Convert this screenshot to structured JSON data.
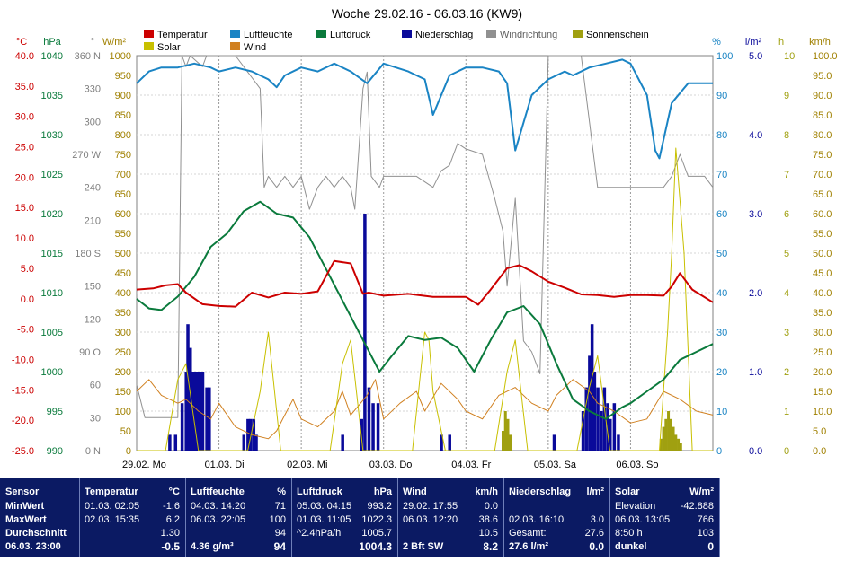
{
  "title": "Woche 29.02.16 - 06.03.16 (KW9)",
  "legend": [
    {
      "label": "Temperatur",
      "color": "#cc0000"
    },
    {
      "label": "Luftfeuchte",
      "color": "#1a84c4"
    },
    {
      "label": "Luftdruck",
      "color": "#0a7a3c"
    },
    {
      "label": "Niederschlag",
      "color": "#0a0a9a"
    },
    {
      "label": "Windrichtung",
      "color": "#909090"
    },
    {
      "label": "Sonnenschein",
      "color": "#a0a010"
    },
    {
      "label": "Solar",
      "color": "#c8c000"
    },
    {
      "label": "Wind",
      "color": "#d08020"
    }
  ],
  "axes": {
    "temp": {
      "unit": "°C",
      "color": "#cc0000",
      "ticks": [
        "40.0",
        "35.0",
        "30.0",
        "25.0",
        "20.0",
        "15.0",
        "10.0",
        "5.0",
        "0.0",
        "-5.0",
        "-10.0",
        "-15.0",
        "-20.0",
        "-25.0"
      ]
    },
    "press": {
      "unit": "hPa",
      "color": "#0a7a3c",
      "ticks": [
        "1040",
        "1035",
        "1030",
        "1025",
        "1020",
        "1015",
        "1010",
        "1005",
        "1000",
        "995",
        "990"
      ]
    },
    "dir": {
      "unit": "°",
      "color": "#808080",
      "ticks": [
        "360 N",
        "330",
        "300",
        "270 W",
        "240",
        "210",
        "180 S",
        "150",
        "120",
        "90 O",
        "60",
        "30",
        "0 N"
      ]
    },
    "solar": {
      "unit": "W/m²",
      "color": "#a08000",
      "ticks": [
        "1000",
        "950",
        "900",
        "850",
        "800",
        "750",
        "700",
        "650",
        "600",
        "550",
        "500",
        "450",
        "400",
        "350",
        "300",
        "250",
        "200",
        "150",
        "100",
        "50",
        "0"
      ]
    },
    "hum": {
      "unit": "%",
      "color": "#1a84c4",
      "ticks": [
        "100",
        "90",
        "80",
        "70",
        "60",
        "50",
        "40",
        "30",
        "20",
        "10",
        "0"
      ]
    },
    "rain": {
      "unit": "l/m²",
      "color": "#0a0a9a",
      "ticks": [
        "5.0",
        "4.0",
        "3.0",
        "2.0",
        "1.0",
        "0.0"
      ]
    },
    "sun": {
      "unit": "h",
      "color": "#a0a010",
      "ticks": [
        "10",
        "9",
        "8",
        "7",
        "6",
        "5",
        "4",
        "3",
        "2",
        "1",
        "0"
      ]
    },
    "wind": {
      "unit": "km/h",
      "color": "#a08000",
      "ticks": [
        "100.0",
        "95.0",
        "90.0",
        "85.0",
        "80.0",
        "75.0",
        "70.0",
        "65.0",
        "60.0",
        "55.0",
        "50.0",
        "45.0",
        "40.0",
        "35.0",
        "30.0",
        "25.0",
        "20.0",
        "15.0",
        "10.0",
        "5.0",
        "0.0"
      ]
    }
  },
  "chart_data": {
    "type": "line",
    "title": "Woche 29.02.16 - 06.03.16 (KW9)",
    "x_days": [
      "29.02.  Mo",
      "01.03.  Di",
      "02.03.  Mi",
      "03.03.  Do",
      "04.03.  Fr",
      "05.03.  Sa",
      "06.03.  So"
    ],
    "x_unit": "days since 29.02. 00:00",
    "series": [
      {
        "name": "Temperatur",
        "axis": "temp",
        "color": "#cc0000",
        "x": [
          0,
          0.2,
          0.35,
          0.5,
          0.6,
          0.8,
          1.0,
          1.2,
          1.4,
          1.6,
          1.8,
          2.0,
          2.2,
          2.4,
          2.6,
          2.75,
          2.82,
          3.0,
          3.3,
          3.6,
          3.8,
          4.0,
          4.15,
          4.3,
          4.5,
          4.65,
          4.8,
          5.0,
          5.2,
          5.4,
          5.6,
          5.8,
          6.0,
          6.2,
          6.4,
          6.5,
          6.6,
          6.75,
          7.0
        ],
        "y": [
          1.5,
          1.7,
          2.2,
          2.4,
          1.0,
          -0.9,
          -1.2,
          -1.3,
          1.0,
          0.2,
          1.0,
          0.8,
          1.2,
          6.2,
          5.8,
          0.8,
          1.0,
          0.5,
          0.8,
          0.3,
          0.3,
          0.3,
          -1.0,
          1.5,
          5.0,
          5.5,
          4.5,
          2.8,
          1.8,
          0.7,
          0.6,
          0.3,
          0.6,
          0.6,
          0.5,
          2.0,
          4.2,
          1.5,
          -0.6
        ]
      },
      {
        "name": "Luftfeuchte",
        "axis": "hum",
        "color": "#1a84c4",
        "x": [
          0,
          0.15,
          0.3,
          0.5,
          0.7,
          0.9,
          1.0,
          1.2,
          1.4,
          1.6,
          1.7,
          1.8,
          2.0,
          2.2,
          2.4,
          2.6,
          2.8,
          3.0,
          3.15,
          3.3,
          3.5,
          3.6,
          3.8,
          4.0,
          4.2,
          4.4,
          4.5,
          4.6,
          4.8,
          5.0,
          5.2,
          5.3,
          5.5,
          5.7,
          5.9,
          6.0,
          6.2,
          6.3,
          6.35,
          6.5,
          6.7,
          7.0
        ],
        "y": [
          93,
          96,
          97,
          97,
          98,
          97,
          96,
          97,
          96,
          94,
          92,
          95,
          97,
          96,
          98,
          96,
          93,
          98,
          97,
          96,
          94,
          85,
          95,
          97,
          97,
          96,
          93,
          76,
          90,
          94,
          96,
          95,
          97,
          98,
          99,
          98,
          90,
          76,
          74,
          88,
          93,
          93
        ]
      },
      {
        "name": "Luftdruck",
        "axis": "press",
        "color": "#0a7a3c",
        "x": [
          0,
          0.15,
          0.3,
          0.5,
          0.7,
          0.9,
          1.1,
          1.3,
          1.5,
          1.7,
          1.9,
          2.1,
          2.3,
          2.6,
          2.8,
          2.95,
          3.1,
          3.3,
          3.5,
          3.7,
          3.9,
          4.1,
          4.3,
          4.5,
          4.7,
          4.9,
          5.1,
          5.3,
          5.5,
          5.7,
          5.9,
          6.0,
          6.2,
          6.4,
          6.6,
          6.8,
          7.0
        ],
        "y": [
          1009.2,
          1008.0,
          1007.8,
          1009.5,
          1012.0,
          1015.8,
          1017.5,
          1020.3,
          1021.5,
          1020.0,
          1019.5,
          1017.0,
          1013.0,
          1007.0,
          1003.0,
          1000.0,
          1002.0,
          1004.5,
          1004.0,
          1004.3,
          1003.0,
          1000.0,
          1004.0,
          1007.5,
          1008.3,
          1006.0,
          1001.0,
          996.5,
          995.0,
          994.0,
          995.5,
          996.0,
          997.5,
          999.0,
          1001.5,
          1002.5,
          1003.5
        ]
      },
      {
        "name": "Windrichtung",
        "axis": "dir",
        "color": "#909090",
        "x": [
          0,
          0.05,
          0.1,
          0.3,
          0.5,
          0.55,
          0.6,
          0.65,
          0.8,
          0.85,
          1.0,
          1.2,
          1.5,
          1.55,
          1.6,
          1.7,
          1.8,
          1.9,
          2.0,
          2.1,
          2.2,
          2.3,
          2.4,
          2.5,
          2.6,
          2.65,
          2.75,
          2.8,
          2.85,
          2.95,
          3.0,
          3.2,
          3.4,
          3.6,
          3.7,
          3.8,
          3.9,
          4.0,
          4.2,
          4.35,
          4.45,
          4.5,
          4.6,
          4.7,
          4.8,
          4.9,
          5.0,
          5.1,
          5.2,
          5.4,
          5.6,
          5.8,
          6.0,
          6.2,
          6.4,
          6.5,
          6.6,
          6.7,
          6.8,
          6.9,
          7.0
        ],
        "y": [
          60,
          45,
          30,
          30,
          30,
          360,
          350,
          360,
          350,
          360,
          360,
          360,
          330,
          240,
          250,
          240,
          250,
          240,
          250,
          220,
          240,
          250,
          240,
          250,
          240,
          220,
          330,
          345,
          250,
          240,
          250,
          250,
          250,
          240,
          255,
          260,
          280,
          275,
          270,
          230,
          200,
          150,
          230,
          100,
          90,
          70,
          360,
          360,
          360,
          360,
          240,
          240,
          240,
          240,
          240,
          250,
          270,
          250,
          250,
          250,
          240
        ]
      },
      {
        "name": "Wind",
        "axis": "wind",
        "color": "#d08020",
        "x": [
          0,
          0.15,
          0.3,
          0.5,
          0.6,
          0.75,
          0.9,
          1.0,
          1.2,
          1.4,
          1.6,
          1.7,
          1.8,
          1.9,
          2.0,
          2.2,
          2.4,
          2.5,
          2.6,
          2.8,
          2.9,
          3.0,
          3.2,
          3.4,
          3.5,
          3.7,
          3.9,
          4.0,
          4.2,
          4.4,
          4.6,
          4.8,
          5.0,
          5.1,
          5.3,
          5.5,
          5.6,
          5.8,
          6.0,
          6.2,
          6.4,
          6.6,
          6.8,
          7.0
        ],
        "y": [
          15,
          18,
          14,
          12,
          13,
          10,
          8,
          12,
          6,
          4,
          3,
          5,
          9,
          13,
          8,
          6,
          10,
          15,
          9,
          14,
          18,
          8,
          12,
          15,
          10,
          17,
          13,
          10,
          8,
          14,
          16,
          12,
          10,
          14,
          18,
          15,
          12,
          10,
          7,
          8,
          15,
          13,
          10,
          9
        ]
      },
      {
        "name": "Solar",
        "axis": "solar",
        "color": "#c8c000",
        "x": [
          0,
          0.35,
          0.5,
          0.6,
          0.75,
          1.35,
          1.5,
          1.6,
          1.75,
          2.35,
          2.5,
          2.6,
          2.75,
          3.35,
          3.45,
          3.5,
          3.55,
          3.6,
          3.75,
          4.35,
          4.5,
          4.6,
          4.75,
          5.35,
          5.5,
          5.6,
          5.75,
          6.35,
          6.45,
          6.5,
          6.55,
          6.65,
          6.75,
          7.0
        ],
        "y": [
          0,
          0,
          180,
          220,
          0,
          0,
          150,
          300,
          0,
          0,
          220,
          280,
          0,
          0,
          200,
          300,
          280,
          150,
          0,
          0,
          200,
          280,
          0,
          0,
          160,
          240,
          0,
          0,
          300,
          500,
          766,
          500,
          0,
          0
        ]
      }
    ],
    "niederschlag": {
      "name": "Niederschlag",
      "axis": "rain",
      "color": "#0a0a9a",
      "x": [
        0.4,
        0.47,
        0.55,
        0.6,
        0.62,
        0.65,
        0.68,
        0.71,
        0.74,
        0.77,
        0.8,
        0.85,
        0.88,
        1.3,
        1.35,
        1.38,
        1.42,
        1.45,
        2.5,
        2.73,
        2.77,
        2.82,
        2.87,
        2.93,
        3.7,
        3.8,
        5.07,
        5.42,
        5.46,
        5.5,
        5.53,
        5.56,
        5.6,
        5.64,
        5.68,
        5.72,
        5.75,
        5.8,
        5.85
      ],
      "y": [
        0.2,
        0.2,
        0.6,
        1.0,
        1.6,
        1.3,
        1.0,
        1.0,
        1.0,
        1.0,
        1.0,
        0.8,
        0.8,
        0.2,
        0.4,
        0.4,
        0.4,
        0.2,
        0.2,
        0.4,
        3.0,
        0.8,
        0.6,
        0.6,
        0.2,
        0.2,
        0.2,
        0.5,
        0.8,
        1.2,
        1.6,
        1.0,
        0.8,
        0.5,
        0.8,
        0.6,
        0.4,
        0.6,
        0.2
      ]
    },
    "sonnenschein": {
      "name": "Sonnenschein",
      "axis": "sun",
      "color": "#a0a010",
      "x": [
        4.45,
        4.48,
        4.51,
        4.54,
        6.37,
        6.4,
        6.43,
        6.46,
        6.49,
        6.52,
        6.55,
        6.58,
        6.61
      ],
      "y": [
        0.5,
        1.0,
        0.8,
        0.4,
        0.3,
        0.6,
        0.8,
        1.0,
        0.8,
        0.6,
        0.4,
        0.3,
        0.2
      ]
    }
  },
  "table": {
    "columns": [
      {
        "header": "Temperatur",
        "unit": "°C",
        "rows": [
          {
            "t": "01.03.  02:05",
            "v": "-1.6"
          },
          {
            "t": "02.03.  15:35",
            "v": "6.2"
          },
          {
            "t": "",
            "v": "1.30"
          },
          {
            "t": "",
            "v": "-0.5",
            "bold": true
          }
        ]
      },
      {
        "header": "Luftfeuchte",
        "unit": "%",
        "rows": [
          {
            "t": "04.03.  14:20",
            "v": "71"
          },
          {
            "t": "06.03.  22:05",
            "v": "100"
          },
          {
            "t": "",
            "v": "94"
          },
          {
            "t": "4.36 g/m³",
            "v": "94",
            "bold": true
          }
        ]
      },
      {
        "header": "Luftdruck",
        "unit": "hPa",
        "rows": [
          {
            "t": "05.03.  04:15",
            "v": "993.2"
          },
          {
            "t": "01.03.  11:05",
            "v": "1022.3"
          },
          {
            "t": "^2.4hPa/h",
            "v": "1005.7"
          },
          {
            "t": "",
            "v": "1004.3",
            "bold": true
          }
        ]
      },
      {
        "header": "Wind",
        "unit": "km/h",
        "rows": [
          {
            "t": "29.02.  17:55",
            "v": "0.0"
          },
          {
            "t": "06.03.  12:20",
            "v": "38.6"
          },
          {
            "t": "",
            "v": "10.5"
          },
          {
            "t": "2 Bft SW",
            "v": "8.2",
            "bold": true
          }
        ]
      },
      {
        "header": "Niederschlag",
        "unit": "l/m²",
        "rows": [
          {
            "t": "",
            "v": ""
          },
          {
            "t": "02.03.  16:10",
            "v": "3.0"
          },
          {
            "t": "Gesamt:",
            "v": "27.6"
          },
          {
            "t": "27.6 l/m²",
            "v": "0.0",
            "bold": true
          }
        ]
      },
      {
        "header": "Solar",
        "unit": "W/m²",
        "rows": [
          {
            "t": "Elevation",
            "v": "-42.888"
          },
          {
            "t": "06.03.  13:05",
            "v": "766"
          },
          {
            "t": "8:50 h",
            "v": "103"
          },
          {
            "t": "dunkel",
            "v": "0",
            "bold": true
          }
        ]
      }
    ],
    "sensor": {
      "header": "Sensor",
      "rows": [
        "MinWert",
        "MaxWert",
        "Durchschnitt",
        "06.03.  23:00"
      ]
    }
  }
}
